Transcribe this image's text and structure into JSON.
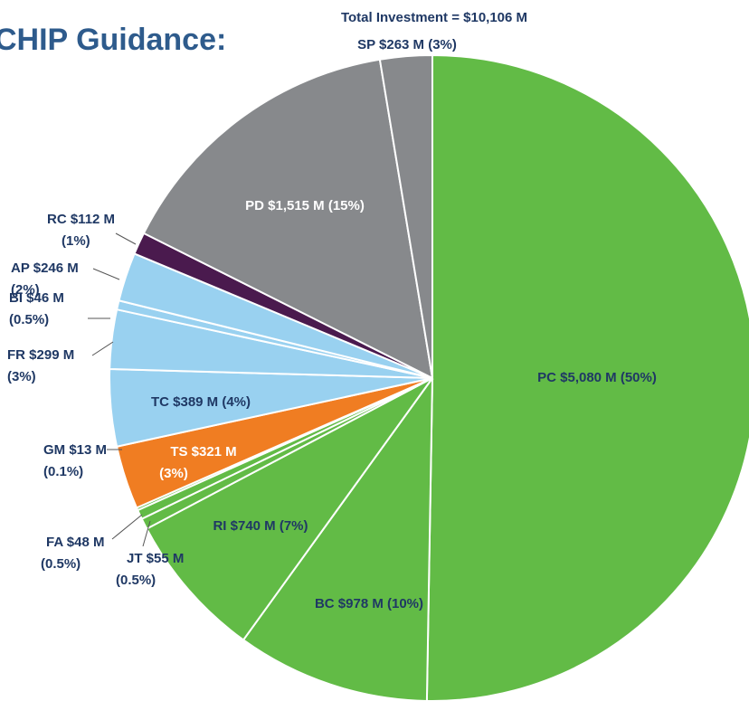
{
  "chart_data": {
    "type": "pie",
    "title": "CHIP Guidance:",
    "subtitle": "Total Investment = $10,106 M",
    "categories": [
      "PC",
      "BC",
      "RI",
      "JT",
      "FA",
      "GM",
      "TS",
      "TC",
      "FR",
      "BI",
      "AP",
      "RC",
      "PD",
      "SP"
    ],
    "values": [
      5080,
      978,
      740,
      55,
      48,
      13,
      321,
      389,
      299,
      46,
      246,
      112,
      1515,
      263
    ],
    "value_labels": [
      [
        "PC $5,080 M (50%)"
      ],
      [
        "BC $978 M (10%)"
      ],
      [
        "RI $740 M (7%)"
      ],
      [
        "JT $55 M",
        "(0.5%)"
      ],
      [
        "FA $48 M",
        "(0.5%)"
      ],
      [
        "GM $13 M",
        "(0.1%)"
      ],
      [
        "TS $321 M",
        "(3%)"
      ],
      [
        "TC $389 M (4%)"
      ],
      [
        "FR $299 M",
        "(3%)"
      ],
      [
        "BI $46 M",
        "(0.5%)"
      ],
      [
        "AP $246 M",
        "(2%)"
      ],
      [
        "RC $112 M",
        "(1%)"
      ],
      [
        "PD $1,515 M (15%)"
      ],
      [
        "SP $263 M (3%)"
      ]
    ],
    "colors": [
      "#62bb46",
      "#62bb46",
      "#62bb46",
      "#62bb46",
      "#62bb46",
      "#62bb46",
      "#f07d22",
      "#99d1f0",
      "#99d1f0",
      "#99d1f0",
      "#99d1f0",
      "#4a1a4e",
      "#87898c",
      "#87898c"
    ]
  }
}
